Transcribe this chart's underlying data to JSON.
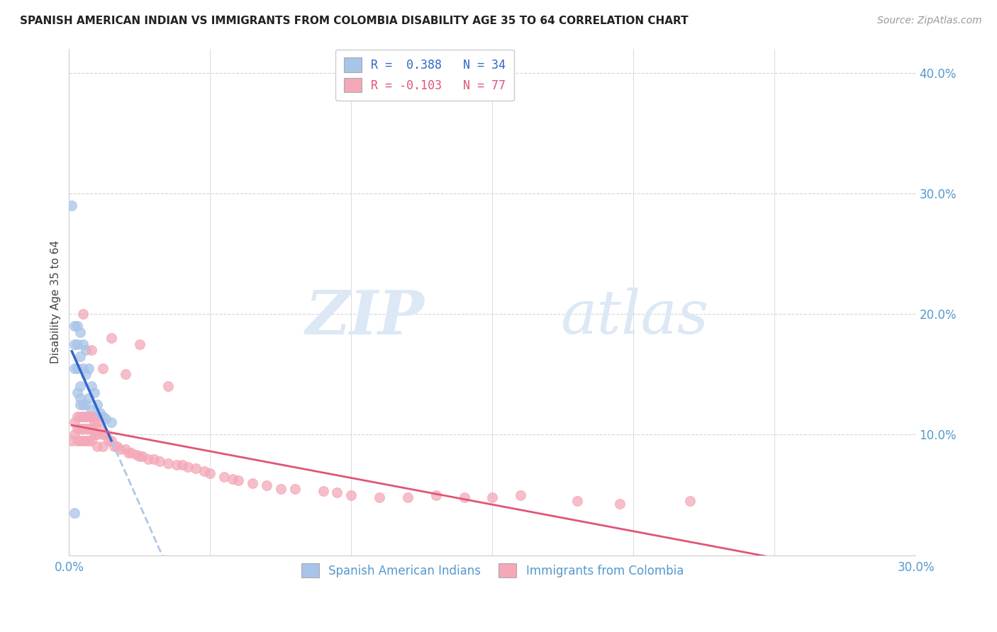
{
  "title": "SPANISH AMERICAN INDIAN VS IMMIGRANTS FROM COLOMBIA DISABILITY AGE 35 TO 64 CORRELATION CHART",
  "source": "Source: ZipAtlas.com",
  "ylabel": "Disability Age 35 to 64",
  "legend1_r": "0.388",
  "legend1_n": "34",
  "legend2_r": "-0.103",
  "legend2_n": "77",
  "blue_color": "#a8c4e8",
  "pink_color": "#f4a8b8",
  "blue_line_color": "#3366cc",
  "pink_line_color": "#e05575",
  "dashed_line_color": "#b0c8e8",
  "background_color": "#ffffff",
  "grid_color": "#cccccc",
  "watermark_color": "#dce8f5",
  "series1_label": "Spanish American Indians",
  "series2_label": "Immigrants from Colombia",
  "xlim": [
    0.0,
    0.3
  ],
  "ylim": [
    0.0,
    0.42
  ],
  "blue_x": [
    0.001,
    0.002,
    0.002,
    0.002,
    0.003,
    0.003,
    0.003,
    0.003,
    0.004,
    0.004,
    0.004,
    0.004,
    0.004,
    0.005,
    0.005,
    0.005,
    0.005,
    0.006,
    0.006,
    0.006,
    0.006,
    0.007,
    0.007,
    0.007,
    0.008,
    0.008,
    0.009,
    0.009,
    0.01,
    0.011,
    0.012,
    0.013,
    0.015,
    0.002
  ],
  "blue_y": [
    0.29,
    0.155,
    0.175,
    0.19,
    0.19,
    0.175,
    0.155,
    0.135,
    0.185,
    0.165,
    0.14,
    0.13,
    0.125,
    0.175,
    0.155,
    0.125,
    0.115,
    0.17,
    0.15,
    0.125,
    0.115,
    0.155,
    0.13,
    0.115,
    0.14,
    0.12,
    0.135,
    0.115,
    0.125,
    0.118,
    0.115,
    0.113,
    0.11,
    0.035
  ],
  "pink_x": [
    0.001,
    0.002,
    0.002,
    0.003,
    0.003,
    0.003,
    0.004,
    0.004,
    0.004,
    0.005,
    0.005,
    0.005,
    0.006,
    0.006,
    0.006,
    0.007,
    0.007,
    0.007,
    0.008,
    0.008,
    0.008,
    0.009,
    0.009,
    0.01,
    0.01,
    0.01,
    0.011,
    0.012,
    0.012,
    0.013,
    0.014,
    0.015,
    0.016,
    0.017,
    0.018,
    0.02,
    0.021,
    0.022,
    0.024,
    0.025,
    0.026,
    0.028,
    0.03,
    0.032,
    0.035,
    0.038,
    0.04,
    0.042,
    0.045,
    0.048,
    0.05,
    0.055,
    0.058,
    0.06,
    0.065,
    0.07,
    0.075,
    0.08,
    0.09,
    0.095,
    0.1,
    0.11,
    0.12,
    0.13,
    0.14,
    0.15,
    0.16,
    0.18,
    0.195,
    0.22,
    0.005,
    0.008,
    0.012,
    0.015,
    0.02,
    0.025,
    0.035
  ],
  "pink_y": [
    0.095,
    0.11,
    0.1,
    0.115,
    0.105,
    0.095,
    0.115,
    0.105,
    0.095,
    0.115,
    0.105,
    0.095,
    0.115,
    0.105,
    0.095,
    0.115,
    0.105,
    0.095,
    0.115,
    0.105,
    0.095,
    0.11,
    0.1,
    0.11,
    0.1,
    0.09,
    0.105,
    0.1,
    0.09,
    0.1,
    0.095,
    0.095,
    0.09,
    0.09,
    0.088,
    0.088,
    0.085,
    0.085,
    0.083,
    0.082,
    0.082,
    0.08,
    0.08,
    0.078,
    0.076,
    0.075,
    0.075,
    0.073,
    0.072,
    0.07,
    0.068,
    0.065,
    0.063,
    0.062,
    0.06,
    0.058,
    0.055,
    0.055,
    0.053,
    0.052,
    0.05,
    0.048,
    0.048,
    0.05,
    0.048,
    0.048,
    0.05,
    0.045,
    0.043,
    0.045,
    0.2,
    0.17,
    0.155,
    0.18,
    0.15,
    0.175,
    0.14
  ]
}
